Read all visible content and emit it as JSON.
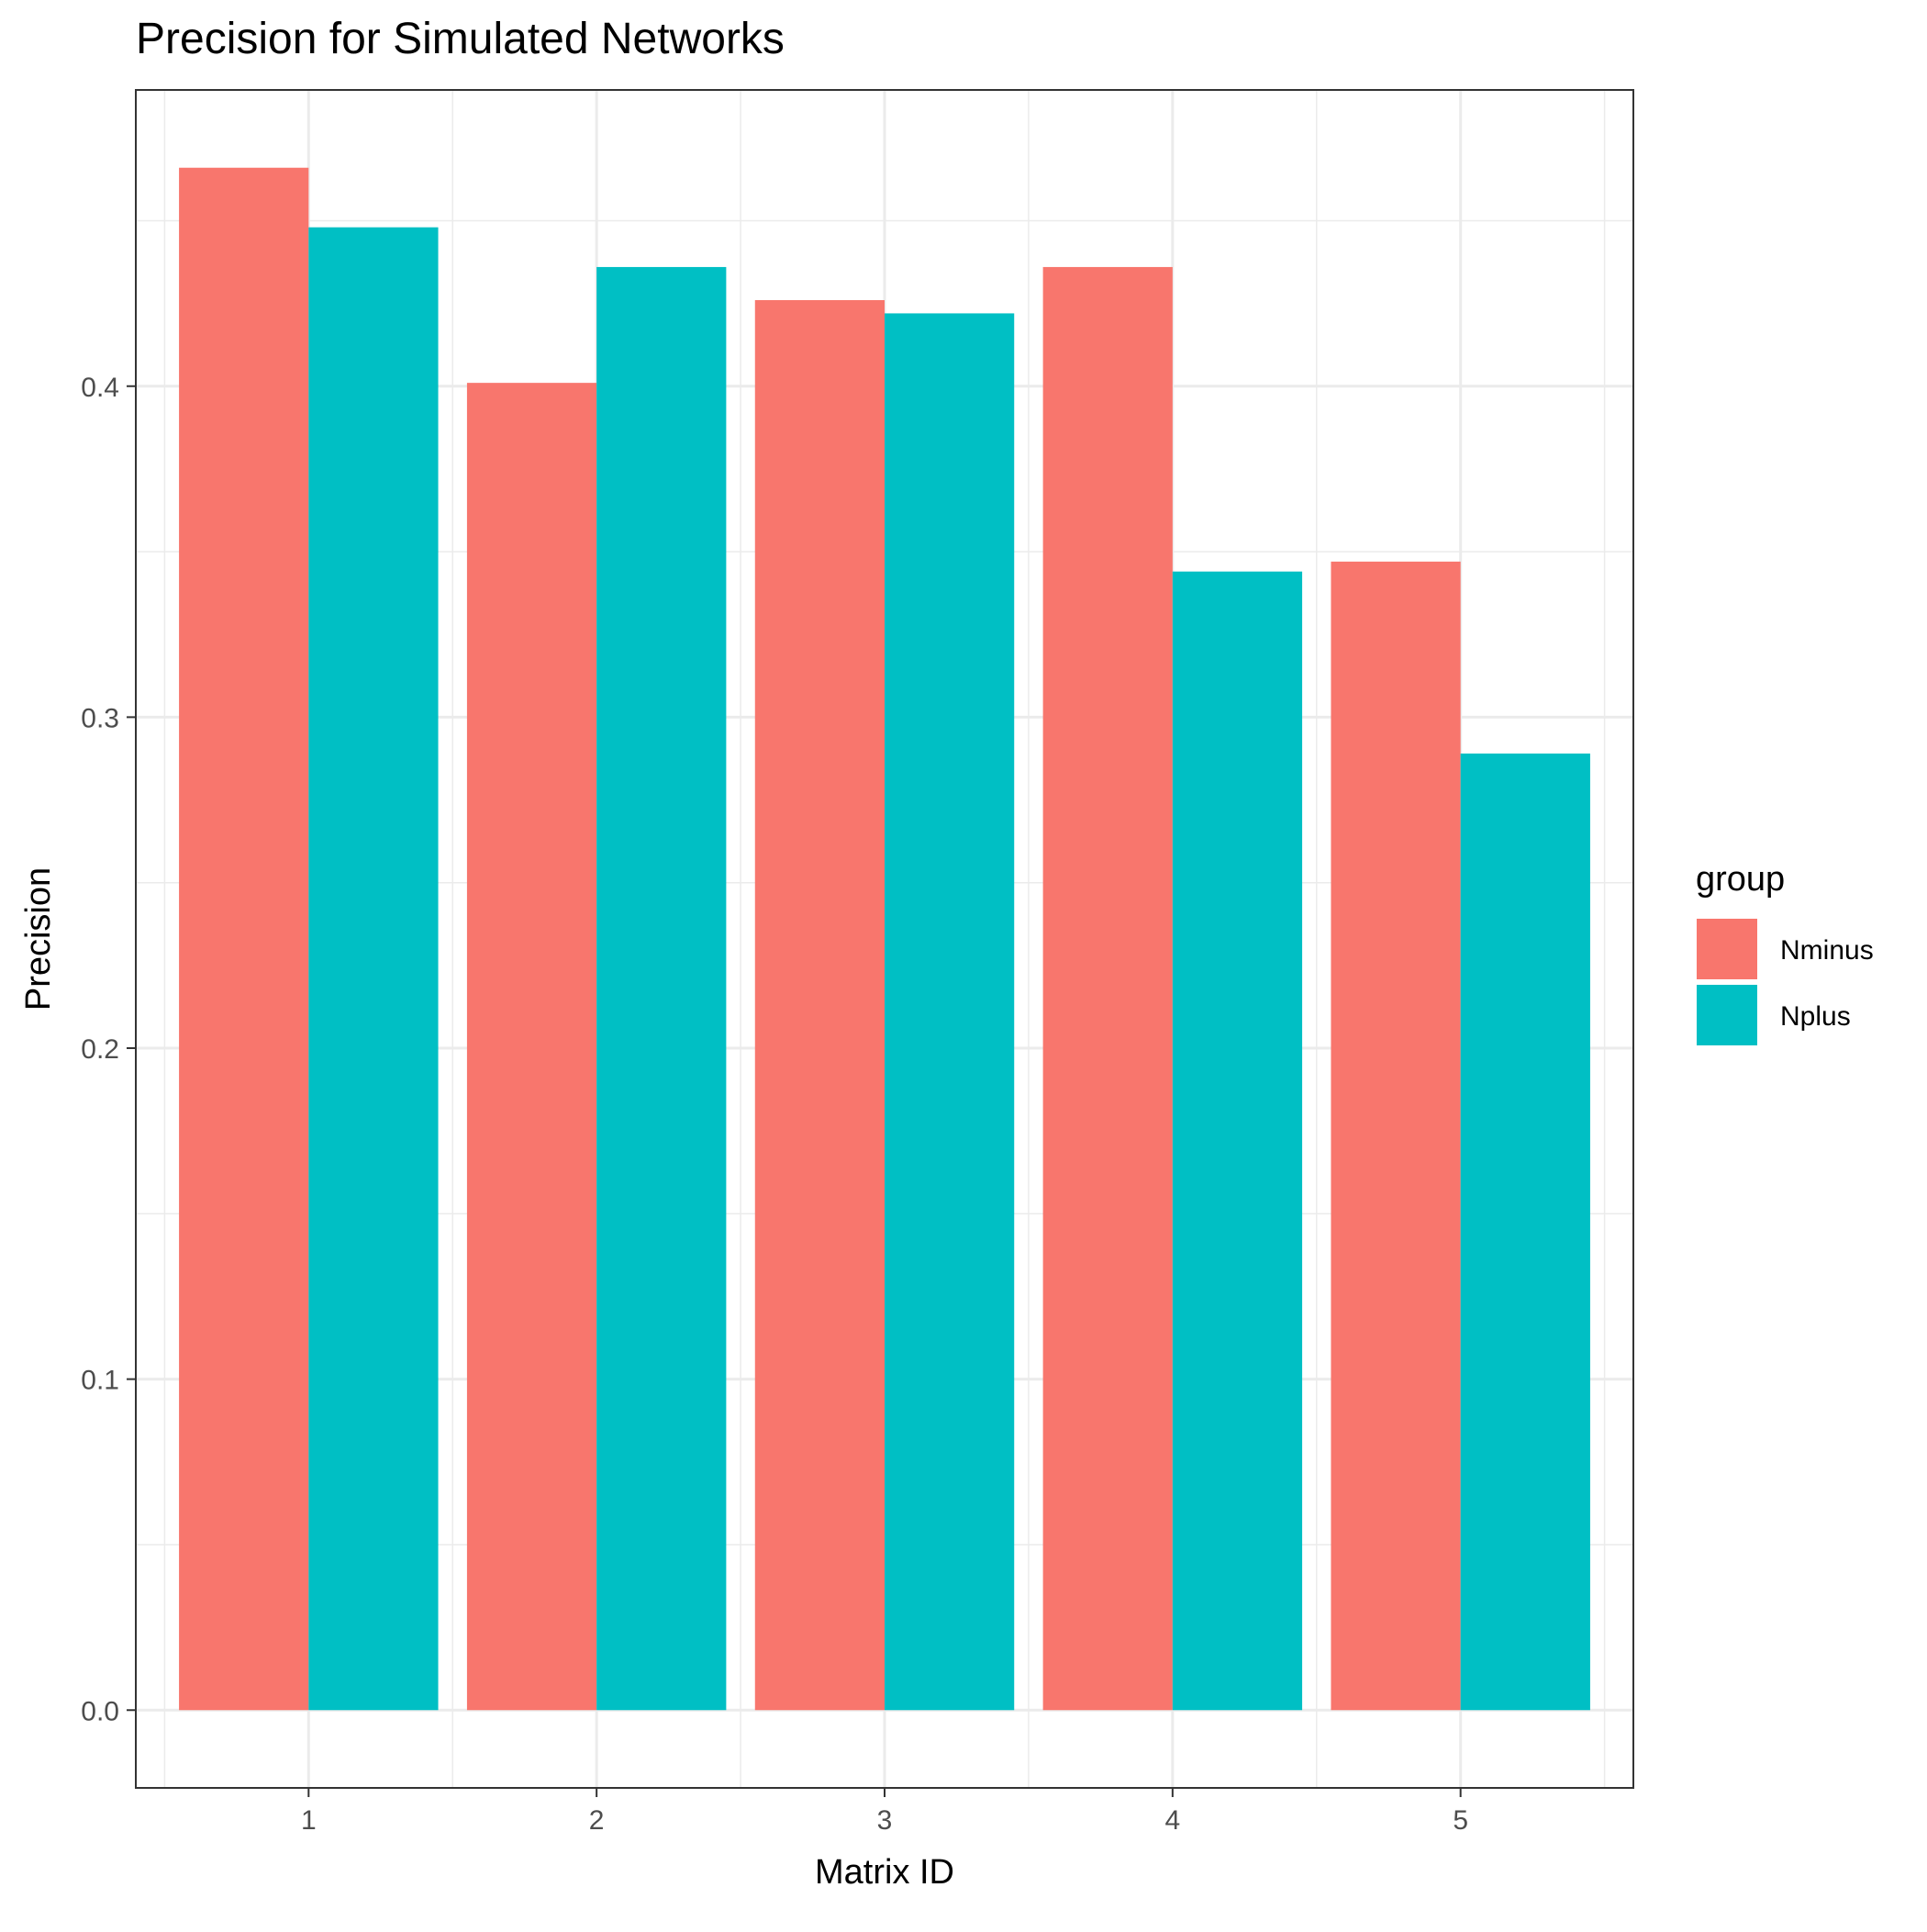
{
  "chart_data": {
    "type": "bar",
    "title": "Precision for Simulated Networks",
    "xlabel": "Matrix ID",
    "ylabel": "Precision",
    "categories": [
      "1",
      "2",
      "3",
      "4",
      "5"
    ],
    "series": [
      {
        "name": "Nminus",
        "color": "#F8766D",
        "values": [
          0.466,
          0.401,
          0.426,
          0.436,
          0.347
        ]
      },
      {
        "name": "Nplus",
        "color": "#00BFC4",
        "values": [
          0.448,
          0.436,
          0.422,
          0.344,
          0.289
        ]
      }
    ],
    "ylim": [
      -0.0235,
      0.4895
    ],
    "yticks": [
      0.0,
      0.1,
      0.2,
      0.3,
      0.4
    ],
    "ytick_labels": [
      "0.0",
      "0.1",
      "0.2",
      "0.3",
      "0.4"
    ],
    "legend": {
      "title": "group",
      "position": "right"
    },
    "grid": true,
    "theme": "bw"
  }
}
